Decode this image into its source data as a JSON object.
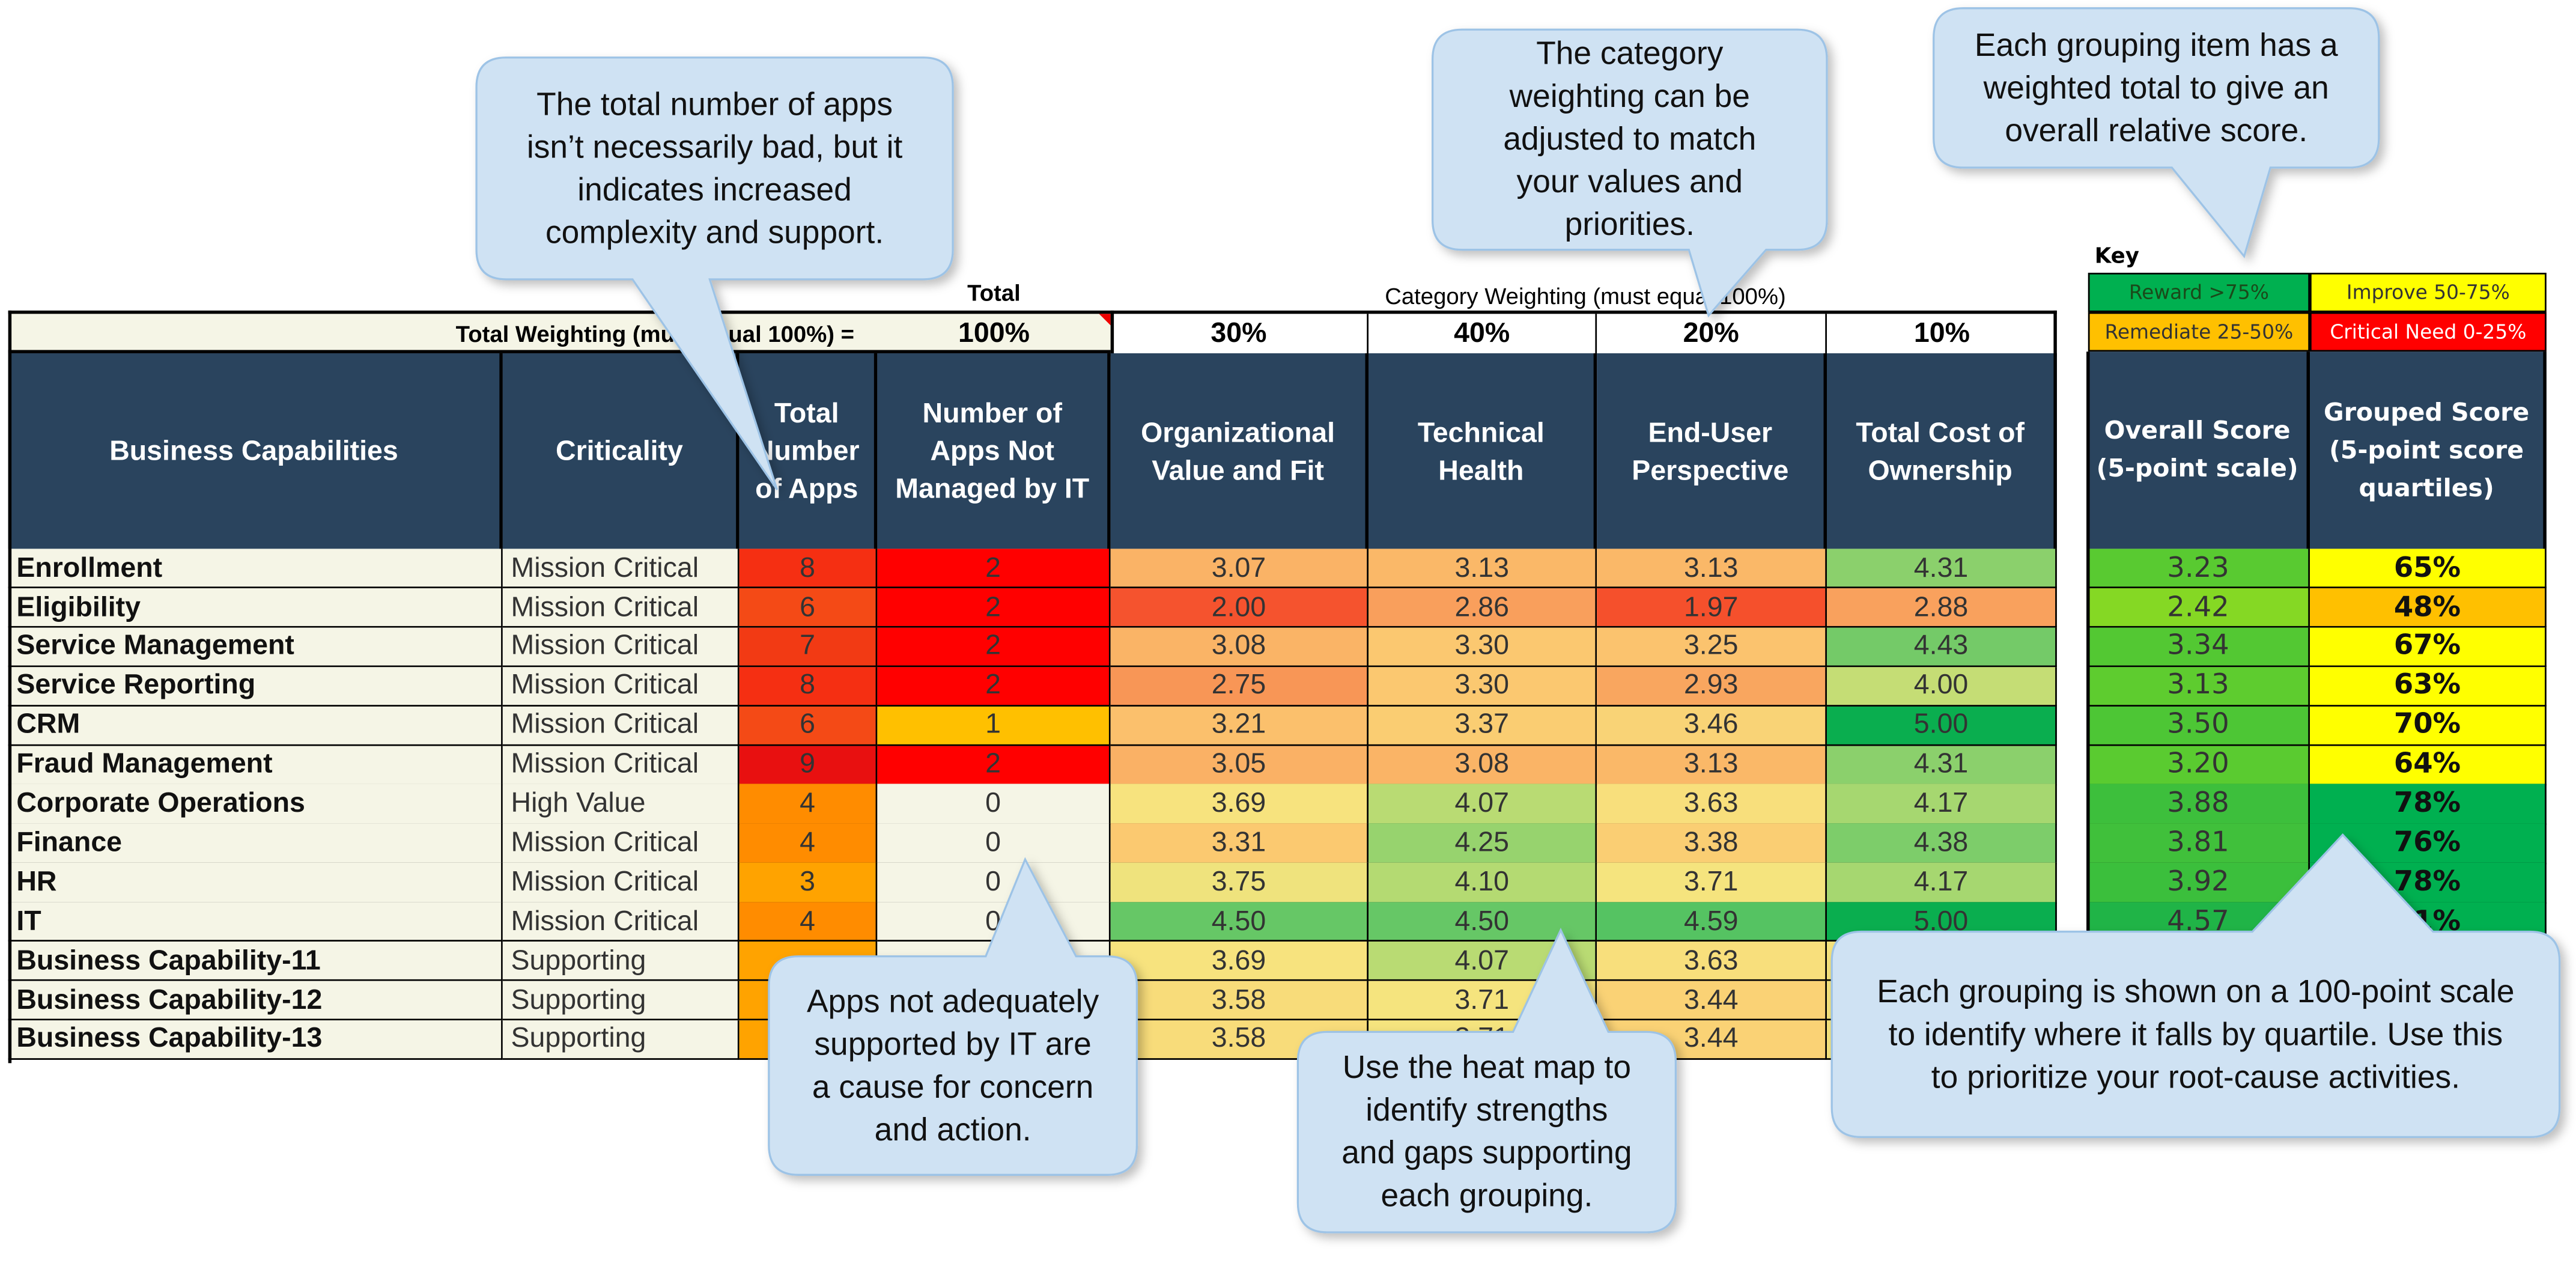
{
  "labels": {
    "total_label": "Total",
    "category_weighting_label": "Category Weighting (must equal 100%)",
    "total_weighting_label": "Total Weighting (must equal 100%) =",
    "total_weighting_value": "100%",
    "key_label": "Key"
  },
  "weights": [
    "30%",
    "40%",
    "20%",
    "10%"
  ],
  "headers": {
    "capabilities": "Business Capabilities",
    "criticality": "Criticality",
    "total_apps": "Total\nNumber\nof Apps",
    "not_managed": "Number of\nApps Not\nManaged by IT",
    "org_value": "Organizational\nValue and Fit",
    "tech_health": "Technical\nHealth",
    "end_user": "End-User\nPerspective",
    "tco": "Total Cost of\nOwnership",
    "overall": "Overall Score\n(5-point scale)",
    "grouped": "Grouped Score\n(5-point score\nquartiles)"
  },
  "key": {
    "reward": {
      "label": "Reward >75%",
      "color": "#00b050"
    },
    "improve": {
      "label": "Improve 50-75%",
      "color": "#ffff00"
    },
    "remediate": {
      "label": "Remediate 25-50%",
      "color": "#ffc000"
    },
    "critical": {
      "label": "Critical Need 0-25%",
      "color": "#ff0000"
    }
  },
  "rows": [
    {
      "name": "Enrollment",
      "criticality": "Mission Critical",
      "total_apps": "8",
      "not_managed": "2",
      "org": "3.07",
      "tech": "3.13",
      "user": "3.13",
      "tco": "4.31",
      "overall": "3.23",
      "grouped": "65%"
    },
    {
      "name": "Eligibility",
      "criticality": "Mission Critical",
      "total_apps": "6",
      "not_managed": "2",
      "org": "2.00",
      "tech": "2.86",
      "user": "1.97",
      "tco": "2.88",
      "overall": "2.42",
      "grouped": "48%"
    },
    {
      "name": "Service Management",
      "criticality": "Mission Critical",
      "total_apps": "7",
      "not_managed": "2",
      "org": "3.08",
      "tech": "3.30",
      "user": "3.25",
      "tco": "4.43",
      "overall": "3.34",
      "grouped": "67%"
    },
    {
      "name": "Service Reporting",
      "criticality": "Mission Critical",
      "total_apps": "8",
      "not_managed": "2",
      "org": "2.75",
      "tech": "3.30",
      "user": "2.93",
      "tco": "4.00",
      "overall": "3.13",
      "grouped": "63%"
    },
    {
      "name": "CRM",
      "criticality": "Mission Critical",
      "total_apps": "6",
      "not_managed": "1",
      "org": "3.21",
      "tech": "3.37",
      "user": "3.46",
      "tco": "5.00",
      "overall": "3.50",
      "grouped": "70%"
    },
    {
      "name": "Fraud Management",
      "criticality": "Mission Critical",
      "total_apps": "9",
      "not_managed": "2",
      "org": "3.05",
      "tech": "3.08",
      "user": "3.13",
      "tco": "4.31",
      "overall": "3.20",
      "grouped": "64%"
    },
    {
      "name": "Corporate Operations",
      "criticality": "High Value",
      "total_apps": "4",
      "not_managed": "0",
      "org": "3.69",
      "tech": "4.07",
      "user": "3.63",
      "tco": "4.17",
      "overall": "3.88",
      "grouped": "78%"
    },
    {
      "name": "Finance",
      "criticality": "Mission Critical",
      "total_apps": "4",
      "not_managed": "0",
      "org": "3.31",
      "tech": "4.25",
      "user": "3.38",
      "tco": "4.38",
      "overall": "3.81",
      "grouped": "76%"
    },
    {
      "name": "HR",
      "criticality": "Mission Critical",
      "total_apps": "3",
      "not_managed": "0",
      "org": "3.75",
      "tech": "4.10",
      "user": "3.71",
      "tco": "4.17",
      "overall": "3.92",
      "grouped": "78%"
    },
    {
      "name": "IT",
      "criticality": "Mission Critical",
      "total_apps": "4",
      "not_managed": "0",
      "org": "4.50",
      "tech": "4.50",
      "user": "4.59",
      "tco": "5.00",
      "overall": "4.57",
      "grouped": "91%"
    },
    {
      "name": "Business Capability-11",
      "criticality": "Supporting",
      "total_apps": "",
      "not_managed": "",
      "org": "3.69",
      "tech": "4.07",
      "user": "3.63",
      "tco": "",
      "overall": "",
      "grouped": ""
    },
    {
      "name": "Business Capability-12",
      "criticality": "Supporting",
      "total_apps": "",
      "not_managed": "",
      "org": "3.58",
      "tech": "3.71",
      "user": "3.44",
      "tco": "",
      "overall": "",
      "grouped": ""
    },
    {
      "name": "Business Capability-13",
      "criticality": "Supporting",
      "total_apps": "",
      "not_managed": "",
      "org": "3.58",
      "tech": "3.71",
      "user": "3.44",
      "tco": "",
      "overall": "",
      "grouped": ""
    }
  ],
  "callouts": {
    "total_apps": "The total number of apps\nisn’t necessarily bad, but it\nindicates increased\ncomplexity and support.",
    "weighting": "The category\nweighting can be\nadjusted to match\nyour values and\npriorities.",
    "weighted_total": "Each grouping item has a\nweighted total to give an\noverall relative score.",
    "not_managed": "Apps not adequately\nsupported by IT are\na cause for concern\nand action.",
    "heat_map": "Use the heat map to\nidentify strengths\nand gaps supporting\neach grouping.",
    "grouped": "Each grouping is shown on a 100-point scale\nto identify where it falls by quartile. Use this\nto prioritize your root-cause activities."
  },
  "colors": {
    "header_bg": "#2a445e",
    "label_bg": "#f5f5e6",
    "callout_fill": "#cfe2f3",
    "callout_stroke": "#9dc3e6"
  }
}
